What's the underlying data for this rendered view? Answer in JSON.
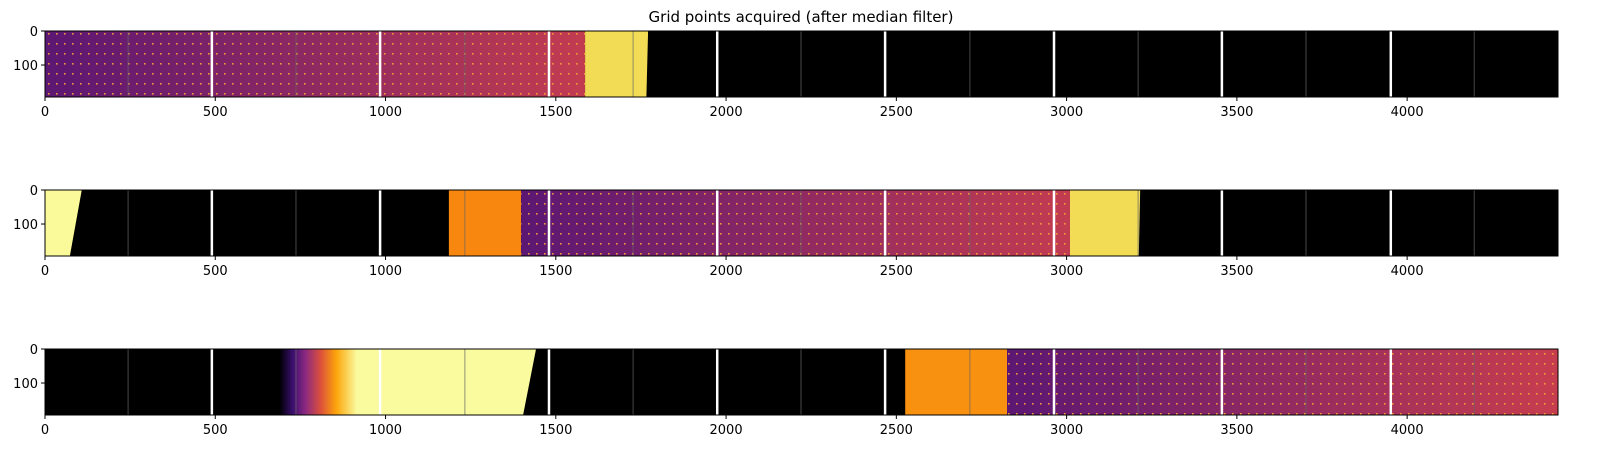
{
  "chart_data": {
    "type": "heatmap",
    "title": "Grid points acquired (after median filter)",
    "xlim": [
      0,
      4443
    ],
    "ylim": [
      194,
      0
    ],
    "xticks": [
      0,
      500,
      1000,
      1500,
      2000,
      2500,
      3000,
      3500,
      4000
    ],
    "yticks": [
      0,
      100
    ],
    "colormap": "inferno",
    "tile_separators": [
      490,
      984,
      1480,
      1974,
      2467,
      2963,
      3456,
      3952
    ],
    "tile_midlines": [
      244,
      737,
      1233,
      1727,
      2220,
      2716,
      3210,
      3703,
      4197
    ],
    "panels": [
      {
        "regions": [
          {
            "kind": "grid",
            "x0": 0,
            "x1": 1586,
            "color_start": "#5b1773",
            "color_end": "#c23c50"
          },
          {
            "kind": "solid",
            "x0": 1586,
            "x1": 1771,
            "x1_bottom": 1766,
            "color": "#f2dc55"
          },
          {
            "kind": "solid",
            "x0": 1771,
            "x1": 4443,
            "color": "#000000"
          }
        ]
      },
      {
        "regions": [
          {
            "kind": "solid",
            "x0": 0,
            "x1": 108,
            "x1_bottom": 73,
            "color": "#fafa9a"
          },
          {
            "kind": "solid",
            "x0": 1186,
            "x1": 1398,
            "color": "#f8870f"
          },
          {
            "kind": "grid",
            "x0": 1398,
            "x1": 3010,
            "color_start": "#5b1773",
            "color_end": "#c23c50"
          },
          {
            "kind": "solid",
            "x0": 3010,
            "x1": 3216,
            "x1_bottom": 3212,
            "color": "#f2dc55"
          }
        ]
      },
      {
        "regions": [
          {
            "kind": "fade",
            "x0": 690,
            "x1": 1442,
            "x1_bottom": 1404,
            "color": "#fafa9e"
          },
          {
            "kind": "solid",
            "x0": 2526,
            "x1": 2825,
            "color": "#f99110"
          },
          {
            "kind": "grid",
            "x0": 2825,
            "x1": 4443,
            "color_start": "#5b1773",
            "color_end": "#c73d4e"
          }
        ]
      }
    ]
  }
}
